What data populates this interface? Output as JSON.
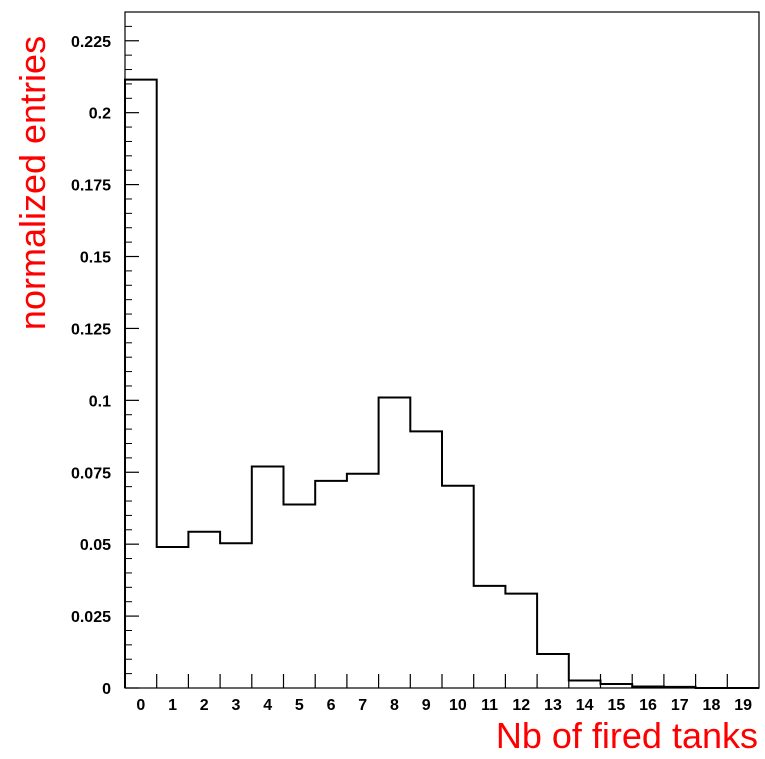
{
  "chart_data": {
    "type": "bar",
    "style": "step-histogram",
    "xlabel": "Nb of fired tanks",
    "ylabel": "normalized entries",
    "categories": [
      "0",
      "1",
      "2",
      "3",
      "4",
      "5",
      "6",
      "7",
      "8",
      "9",
      "10",
      "11",
      "12",
      "13",
      "14",
      "15",
      "16",
      "17",
      "18",
      "19"
    ],
    "values": [
      0.2115,
      0.049,
      0.0543,
      0.0503,
      0.077,
      0.0638,
      0.072,
      0.0745,
      0.101,
      0.0892,
      0.0703,
      0.0355,
      0.0328,
      0.0118,
      0.0026,
      0.0014,
      0.0005,
      0.0004,
      0,
      0
    ],
    "ylim": [
      0,
      0.235
    ],
    "yticks": [
      "0",
      "0.025",
      "0.05",
      "0.075",
      "0.1",
      "0.125",
      "0.15",
      "0.175",
      "0.2",
      "0.225"
    ],
    "grid": false,
    "colors": {
      "line": "#000000",
      "axis_title": "#ff0000"
    }
  }
}
